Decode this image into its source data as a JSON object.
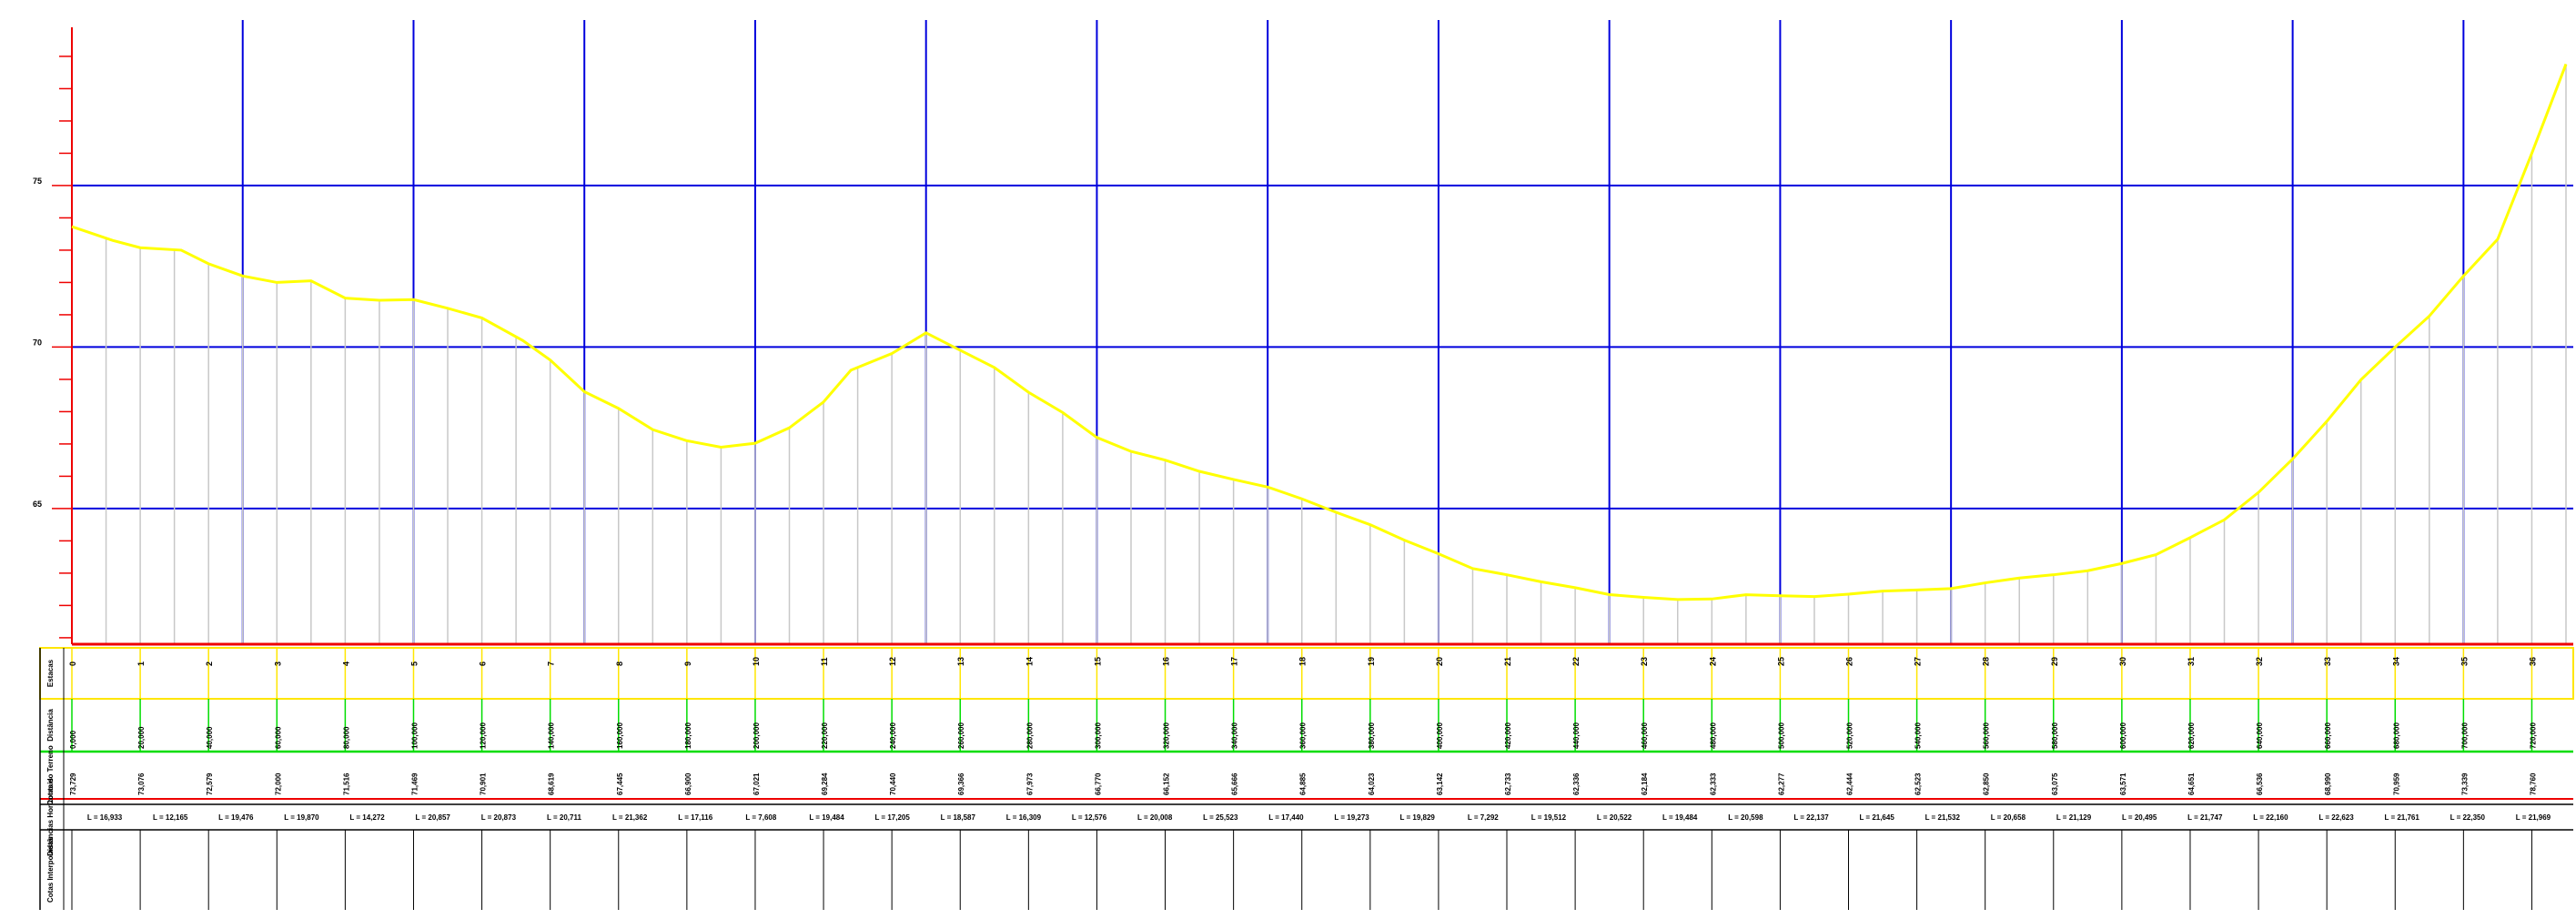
{
  "colors": {
    "grid": "#0000dd",
    "axis": "#ee0000",
    "terrain": "#ffff00",
    "verticals": "#c8c8c8",
    "band_yellow": "#ffe600",
    "band_green": "#00dd00",
    "band_red": "#ee0000",
    "text": "#000000",
    "title": "#cc00cc"
  },
  "chart_data": {
    "type": "line",
    "title": "",
    "xlabel": "",
    "ylabel": "",
    "ylim": [
      60.8,
      79.9
    ],
    "y_ticks": [
      "65",
      "70",
      "75"
    ],
    "band_labels": [
      "Estacas",
      "Distância",
      "Cotas do Terreno",
      "Distâncias Horizontais",
      "Cotas Interpoladas"
    ],
    "stations": [
      "0",
      "1",
      "2",
      "3",
      "4",
      "5",
      "6",
      "7",
      "8",
      "9",
      "10",
      "11",
      "12",
      "13",
      "14",
      "15",
      "16",
      "17",
      "18",
      "19",
      "20",
      "21",
      "22",
      "23",
      "24",
      "25",
      "26",
      "27",
      "28",
      "29",
      "30",
      "31",
      "32",
      "33",
      "34",
      "35",
      "36"
    ],
    "distances": [
      "0,000",
      "20,000",
      "40,000",
      "60,000",
      "80,000",
      "100,000",
      "120,000",
      "140,000",
      "160,000",
      "180,000",
      "200,000",
      "220,000",
      "240,000",
      "260,000",
      "280,000",
      "300,000",
      "320,000",
      "340,000",
      "360,000",
      "380,000",
      "400,000",
      "420,000",
      "440,000",
      "460,000",
      "480,000",
      "500,000",
      "520,000",
      "540,000",
      "560,000",
      "580,000",
      "600,000",
      "620,000",
      "640,000",
      "660,000",
      "680,000",
      "700,000",
      "720,000"
    ],
    "terrain_elevations": [
      "73,729",
      "73,076",
      "72,579",
      "72,000",
      "71,516",
      "71,469",
      "70,901",
      "68,619",
      "67,445",
      "66,900",
      "67,021",
      "69,284",
      "70,440",
      "69,366",
      "67,973",
      "66,770",
      "66,152",
      "65,666",
      "64,885",
      "64,023",
      "63,142",
      "62,733",
      "62,336",
      "62,184",
      "62,333",
      "62,277",
      "62,444",
      "62,523",
      "62,850",
      "63,075",
      "63,571",
      "64,651",
      "66,536",
      "68,990",
      "70,959",
      "73,339",
      "78,760"
    ],
    "horizontal_distances": [
      "L = 16,933",
      "L = 12,165",
      "L = 19,476",
      "L = 19,870",
      "L = 14,272",
      "L = 20,857",
      "L = 20,873",
      "L = 20,711",
      "L = 21,362",
      "L = 17,116",
      "L = 7,608",
      "L = 19,484",
      "L = 17,205",
      "L = 18,587",
      "L = 16,309",
      "L = 12,576",
      "L = 20,008",
      "L = 25,523",
      "L = 17,440",
      "L = 19,273",
      "L = 19,829",
      "L = 7,292",
      "L = 19,512",
      "L = 20,522",
      "L = 19,484",
      "L = 20,598",
      "L = 22,137",
      "L = 21,645",
      "L = 21,532",
      "L = 20,658",
      "L = 21,129",
      "L = 20,495",
      "L = 21,747",
      "L = 22,160",
      "L = 22,623",
      "L = 21,761",
      "L = 22,350",
      "L = 21,969"
    ],
    "profile": {
      "x": [
        0,
        12,
        20,
        32,
        40,
        50,
        60,
        70,
        80,
        90,
        100,
        110,
        120,
        132,
        140,
        150,
        160,
        170,
        180,
        190,
        200,
        210,
        220,
        228,
        240,
        250,
        260,
        270,
        280,
        290,
        300,
        310,
        320,
        330,
        340,
        350,
        360,
        370,
        380,
        390,
        400,
        410,
        420,
        430,
        440,
        450,
        460,
        470,
        480,
        490,
        500,
        510,
        520,
        530,
        540,
        550,
        560,
        570,
        580,
        590,
        600,
        610,
        620,
        630,
        640,
        650,
        660,
        670,
        680,
        690,
        700,
        710,
        720,
        730
      ],
      "y": [
        73.729,
        73.3,
        73.076,
        73.0,
        72.579,
        72.2,
        72.0,
        72.05,
        71.516,
        71.45,
        71.469,
        71.2,
        70.901,
        70.2,
        69.6,
        68.619,
        68.1,
        67.445,
        67.1,
        66.9,
        67.021,
        67.5,
        68.3,
        69.284,
        69.8,
        70.44,
        69.9,
        69.366,
        68.6,
        67.973,
        67.2,
        66.77,
        66.5,
        66.152,
        65.9,
        65.666,
        65.3,
        64.885,
        64.5,
        64.023,
        63.6,
        63.142,
        62.95,
        62.733,
        62.55,
        62.336,
        62.25,
        62.184,
        62.2,
        62.333,
        62.3,
        62.277,
        62.35,
        62.444,
        62.48,
        62.523,
        62.7,
        62.85,
        62.95,
        63.075,
        63.3,
        63.571,
        64.1,
        64.651,
        65.5,
        66.536,
        67.7,
        68.99,
        70.0,
        70.959,
        72.2,
        73.339,
        76.0,
        78.76
      ]
    }
  }
}
